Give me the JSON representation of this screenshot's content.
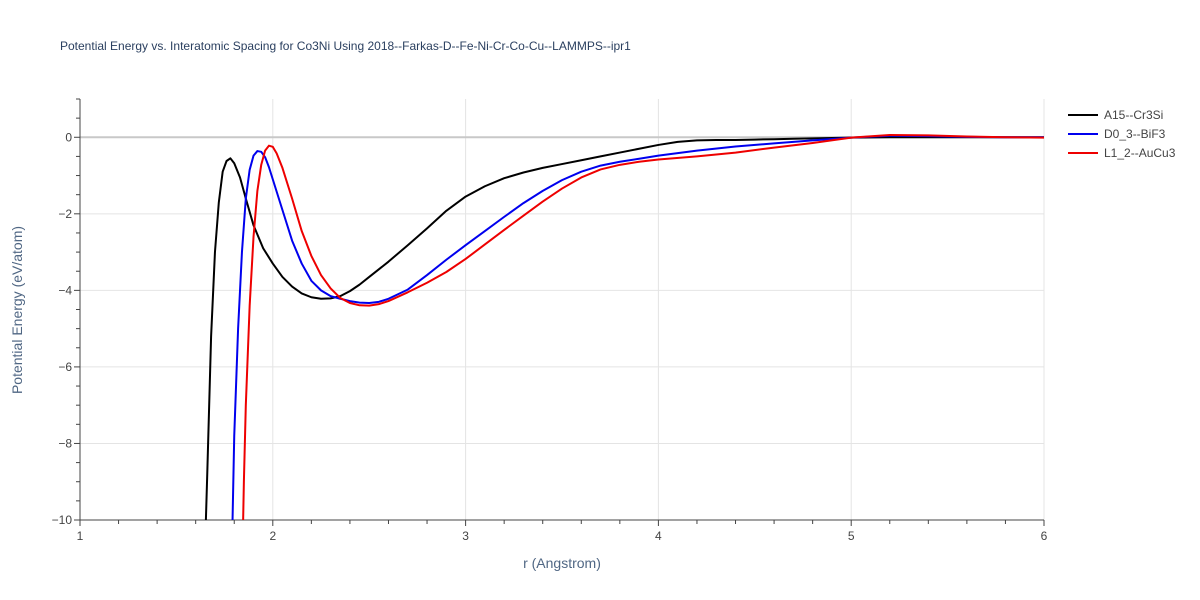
{
  "chart_data": {
    "type": "line",
    "title": "Potential Energy vs. Interatomic Spacing for Co3Ni Using 2018--Farkas-D--Fe-Ni-Cr-Co-Cu--LAMMPS--ipr1",
    "xlabel": "r (Angstrom)",
    "ylabel": "Potential Energy (eV/atom)",
    "xlim": [
      1,
      6
    ],
    "ylim": [
      -10,
      1
    ],
    "xticks": [
      1,
      2,
      3,
      4,
      5,
      6
    ],
    "xtick_labels": [
      "1",
      "2",
      "3",
      "4",
      "5",
      "6"
    ],
    "yticks": [
      -10,
      -8,
      -6,
      -4,
      -2,
      0
    ],
    "ytick_labels": [
      "−10",
      "−8",
      "−6",
      "−4",
      "−2",
      "0"
    ],
    "grid": true,
    "legend_position": "top-right",
    "series": [
      {
        "name": "A15--Cr3Si",
        "color": "#000000",
        "x": [
          1.65,
          1.66,
          1.68,
          1.7,
          1.72,
          1.74,
          1.76,
          1.78,
          1.8,
          1.83,
          1.86,
          1.9,
          1.95,
          2.0,
          2.05,
          2.1,
          2.15,
          2.2,
          2.25,
          2.3,
          2.35,
          2.4,
          2.45,
          2.5,
          2.6,
          2.7,
          2.8,
          2.9,
          3.0,
          3.1,
          3.2,
          3.3,
          3.4,
          3.5,
          3.6,
          3.7,
          3.8,
          3.9,
          4.0,
          4.1,
          4.2,
          4.3,
          4.4,
          4.5,
          4.6,
          4.7,
          4.8,
          4.9,
          5.0,
          5.2,
          5.4,
          5.6,
          5.8,
          6.0
        ],
        "y": [
          -10.5,
          -8.8,
          -5.2,
          -3.0,
          -1.7,
          -0.9,
          -0.62,
          -0.55,
          -0.68,
          -1.05,
          -1.6,
          -2.3,
          -2.9,
          -3.3,
          -3.65,
          -3.9,
          -4.08,
          -4.18,
          -4.22,
          -4.21,
          -4.15,
          -4.02,
          -3.85,
          -3.65,
          -3.25,
          -2.82,
          -2.38,
          -1.92,
          -1.55,
          -1.28,
          -1.07,
          -0.92,
          -0.8,
          -0.7,
          -0.6,
          -0.5,
          -0.4,
          -0.3,
          -0.2,
          -0.12,
          -0.08,
          -0.07,
          -0.07,
          -0.06,
          -0.05,
          -0.04,
          -0.03,
          -0.02,
          -0.01,
          0.0,
          0.0,
          0.0,
          0.0,
          0.0
        ]
      },
      {
        "name": "D0_3--BiF3",
        "color": "#0000ee",
        "x": [
          1.79,
          1.8,
          1.82,
          1.84,
          1.86,
          1.88,
          1.9,
          1.92,
          1.94,
          1.96,
          1.98,
          2.0,
          2.05,
          2.1,
          2.15,
          2.2,
          2.25,
          2.3,
          2.35,
          2.4,
          2.45,
          2.5,
          2.55,
          2.6,
          2.7,
          2.8,
          2.9,
          3.0,
          3.1,
          3.2,
          3.3,
          3.4,
          3.5,
          3.6,
          3.7,
          3.8,
          3.9,
          4.0,
          4.2,
          4.4,
          4.6,
          4.8,
          5.0,
          5.2,
          5.4,
          5.6,
          5.8,
          6.0
        ],
        "y": [
          -10.3,
          -7.8,
          -5.0,
          -3.0,
          -1.6,
          -0.85,
          -0.48,
          -0.36,
          -0.38,
          -0.52,
          -0.78,
          -1.1,
          -1.9,
          -2.7,
          -3.3,
          -3.75,
          -4.0,
          -4.15,
          -4.22,
          -4.28,
          -4.32,
          -4.33,
          -4.3,
          -4.22,
          -3.98,
          -3.6,
          -3.2,
          -2.82,
          -2.45,
          -2.08,
          -1.72,
          -1.4,
          -1.12,
          -0.9,
          -0.74,
          -0.64,
          -0.56,
          -0.48,
          -0.35,
          -0.24,
          -0.16,
          -0.08,
          -0.01,
          0.04,
          0.03,
          0.01,
          0.0,
          0.0
        ]
      },
      {
        "name": "L1_2--AuCu3",
        "color": "#ee0000",
        "x": [
          1.845,
          1.85,
          1.86,
          1.88,
          1.9,
          1.92,
          1.94,
          1.96,
          1.98,
          2.0,
          2.02,
          2.05,
          2.1,
          2.15,
          2.2,
          2.25,
          2.3,
          2.35,
          2.4,
          2.45,
          2.5,
          2.55,
          2.6,
          2.7,
          2.8,
          2.9,
          3.0,
          3.1,
          3.2,
          3.3,
          3.4,
          3.5,
          3.6,
          3.7,
          3.8,
          3.9,
          4.0,
          4.2,
          4.4,
          4.6,
          4.8,
          5.0,
          5.2,
          5.4,
          5.6,
          5.8,
          6.0
        ],
        "y": [
          -10.3,
          -9.0,
          -7.0,
          -4.4,
          -2.6,
          -1.4,
          -0.72,
          -0.35,
          -0.22,
          -0.25,
          -0.42,
          -0.8,
          -1.6,
          -2.45,
          -3.1,
          -3.6,
          -3.95,
          -4.2,
          -4.33,
          -4.39,
          -4.4,
          -4.36,
          -4.28,
          -4.05,
          -3.8,
          -3.52,
          -3.18,
          -2.8,
          -2.42,
          -2.05,
          -1.68,
          -1.34,
          -1.05,
          -0.84,
          -0.72,
          -0.64,
          -0.58,
          -0.5,
          -0.4,
          -0.27,
          -0.15,
          -0.01,
          0.06,
          0.05,
          0.02,
          0.0,
          -0.01
        ]
      }
    ]
  }
}
